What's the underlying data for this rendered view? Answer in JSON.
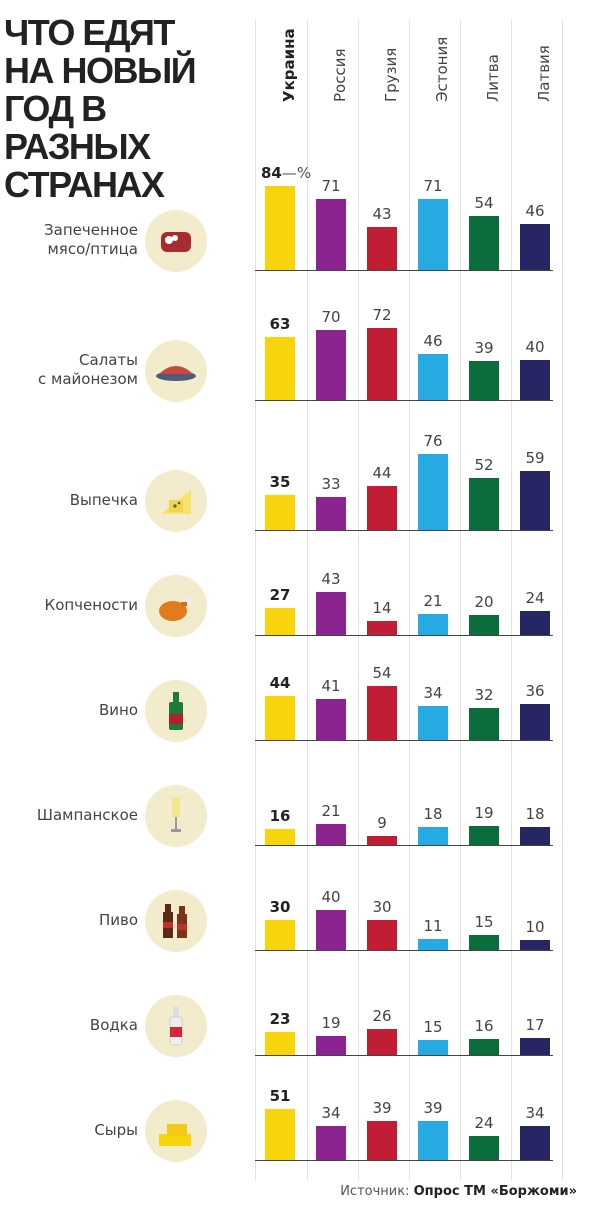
{
  "title_lines": [
    "ЧТО ЕДЯТ",
    "НА НОВЫЙ",
    "ГОД В РАЗНЫХ",
    "СТРАНАХ"
  ],
  "unit_suffix": "—%",
  "source": {
    "prefix": "Источник: ",
    "name": "Опрос ТМ «Боржоми»"
  },
  "colors": {
    "Украина": "#f8d40c",
    "Россия": "#8b2391",
    "Грузия": "#c11d35",
    "Эстония": "#27a9e1",
    "Литва": "#0c6d3c",
    "Латвия": "#252663",
    "icon_bg": "#f3eccc"
  },
  "chart_data": {
    "type": "bar",
    "categories": [
      "Украина",
      "Россия",
      "Грузия",
      "Эстония",
      "Литва",
      "Латвия"
    ],
    "unit": "%",
    "rows": [
      {
        "label": [
          "Запеченное",
          "мясо/птица"
        ],
        "icon": "meat-icon",
        "values": [
          84,
          71,
          43,
          71,
          54,
          46
        ]
      },
      {
        "label": [
          "Салаты",
          "с майонезом"
        ],
        "icon": "salad-icon",
        "values": [
          63,
          70,
          72,
          46,
          39,
          40
        ]
      },
      {
        "label": [
          "Выпечка"
        ],
        "icon": "pastry-icon",
        "values": [
          35,
          33,
          44,
          76,
          52,
          59
        ]
      },
      {
        "label": [
          "Копчености"
        ],
        "icon": "smoked-chicken-icon",
        "values": [
          27,
          43,
          14,
          21,
          20,
          24
        ]
      },
      {
        "label": [
          "Вино"
        ],
        "icon": "wine-bottle-icon",
        "values": [
          44,
          41,
          54,
          34,
          32,
          36
        ]
      },
      {
        "label": [
          "Шампанское"
        ],
        "icon": "champagne-glass-icon",
        "values": [
          16,
          21,
          9,
          18,
          19,
          18
        ]
      },
      {
        "label": [
          "Пиво"
        ],
        "icon": "beer-bottles-icon",
        "values": [
          30,
          40,
          30,
          11,
          15,
          10
        ]
      },
      {
        "label": [
          "Водка"
        ],
        "icon": "vodka-bottle-icon",
        "values": [
          23,
          19,
          26,
          15,
          16,
          17
        ]
      },
      {
        "label": [
          "Сыры"
        ],
        "icon": "cheese-icon",
        "values": [
          51,
          34,
          39,
          39,
          24,
          34
        ]
      }
    ]
  }
}
